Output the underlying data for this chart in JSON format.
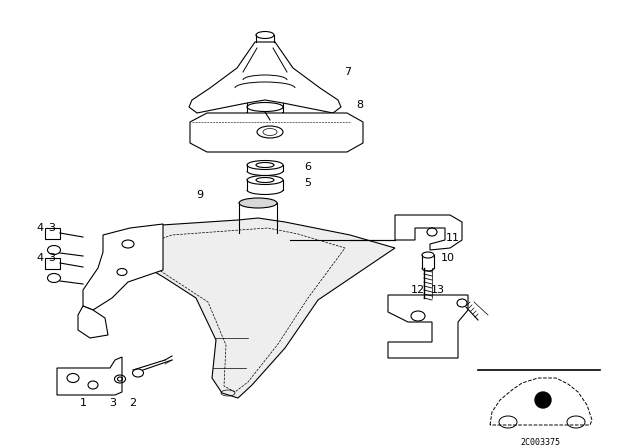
{
  "background_color": "#ffffff",
  "line_color": "#000000",
  "watermark": "2C003375",
  "fig_width": 6.4,
  "fig_height": 4.48,
  "dpi": 100
}
